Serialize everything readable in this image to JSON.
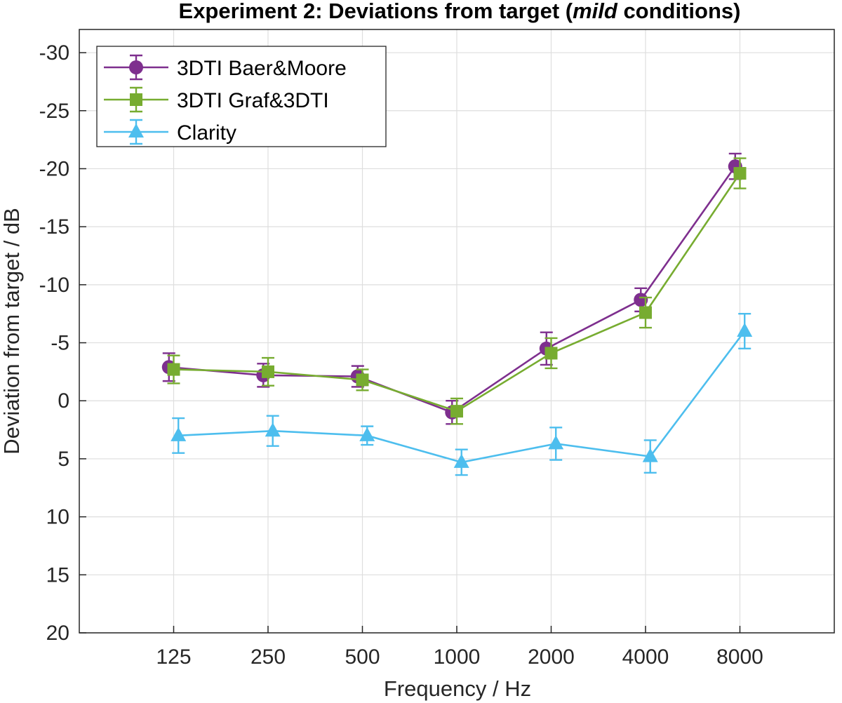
{
  "chart_data": {
    "type": "line",
    "title_parts": [
      "Experiment 2: Deviations from target (",
      "mild",
      " conditions)"
    ],
    "xlabel": "Frequency / Hz",
    "ylabel": "Deviation from target / dB",
    "categories": [
      "125",
      "250",
      "500",
      "1000",
      "2000",
      "4000",
      "8000"
    ],
    "xlim": [
      0,
      8
    ],
    "ylim": [
      20,
      -32
    ],
    "y_direction": "reversed",
    "yticks": [
      -30,
      -25,
      -20,
      -15,
      -10,
      -5,
      0,
      5,
      10,
      15,
      20
    ],
    "ytick_labels": [
      "-30",
      "-25",
      "-20",
      "-15",
      "-10",
      "-5",
      "0",
      "5",
      "10",
      "15",
      "20"
    ],
    "grid": true,
    "legend_position": "top-left",
    "series": [
      {
        "name": "3DTI Baer&Moore",
        "color": "#7e2f8e",
        "marker": "circle",
        "x": [
          0.95,
          1.95,
          2.95,
          3.95,
          4.95,
          5.95,
          6.95
        ],
        "values": [
          -2.9,
          -2.2,
          -2.1,
          1.0,
          -4.5,
          -8.7,
          -20.2
        ],
        "error": [
          1.2,
          1.0,
          0.9,
          1.0,
          1.4,
          1.0,
          1.1
        ]
      },
      {
        "name": "3DTI Graf&3DTI",
        "color": "#77ac30",
        "marker": "square",
        "x": [
          1.0,
          2.0,
          3.0,
          4.0,
          5.0,
          6.0,
          7.0
        ],
        "values": [
          -2.7,
          -2.5,
          -1.8,
          0.9,
          -4.1,
          -7.6,
          -19.6
        ],
        "error": [
          1.2,
          1.2,
          0.9,
          1.1,
          1.3,
          1.3,
          1.3
        ]
      },
      {
        "name": "Clarity",
        "color": "#4dbeee",
        "marker": "triangle",
        "x": [
          1.05,
          2.05,
          3.05,
          4.05,
          5.05,
          6.05,
          7.05
        ],
        "values": [
          3.0,
          2.6,
          3.0,
          5.3,
          3.7,
          4.8,
          -6.0
        ],
        "error": [
          1.5,
          1.3,
          0.8,
          1.1,
          1.4,
          1.4,
          1.5
        ]
      }
    ]
  }
}
